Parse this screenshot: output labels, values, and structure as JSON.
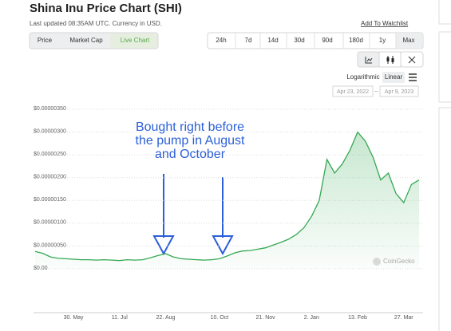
{
  "header": {
    "title": "Shina Inu Price Chart (SHI)",
    "subtitle": "Last updated 08:35AM UTC. Currency in USD.",
    "watchlist": "Add To Watchlist"
  },
  "tabs": [
    "Price",
    "Market Cap",
    "Live Chart"
  ],
  "ranges": [
    "24h",
    "7d",
    "14d",
    "30d",
    "90d",
    "180d",
    "1y",
    "Max"
  ],
  "scale_options": [
    "Logarithmic",
    "Linear"
  ],
  "date_range": [
    "Apr 23, 2022",
    "Apr 9, 2023"
  ],
  "watermark": "CoinGecko",
  "chart_data": {
    "type": "line",
    "color": "#35a853",
    "grid": true,
    "annotation": [
      "Bought right before",
      "the pump in August",
      "and October"
    ],
    "categories": [
      null,
      null,
      null,
      null,
      null,
      "30. May",
      null,
      null,
      null,
      null,
      null,
      "11. Jul",
      null,
      null,
      null,
      null,
      null,
      "22. Aug",
      null,
      null,
      null,
      null,
      null,
      null,
      "10. Oct",
      null,
      null,
      null,
      null,
      null,
      "21. Nov",
      null,
      null,
      null,
      null,
      null,
      "2. Jan",
      null,
      null,
      null,
      null,
      null,
      "13. Feb",
      null,
      null,
      null,
      null,
      null,
      "27. Mar",
      null,
      null
    ],
    "values": [
      3.8e-07,
      3.4e-07,
      2.6e-07,
      2.3e-07,
      2.2e-07,
      2.1e-07,
      2e-07,
      2e-07,
      1.9e-07,
      2e-07,
      1.9e-07,
      1.8e-07,
      2e-07,
      1.9e-07,
      2e-07,
      2.4e-07,
      2.9e-07,
      3.3e-07,
      2.6e-07,
      2.2e-07,
      2.1e-07,
      2e-07,
      1.9e-07,
      2e-07,
      2.2e-07,
      2.8e-07,
      3.5e-07,
      3.9e-07,
      4e-07,
      4.3e-07,
      4.6e-07,
      5.2e-07,
      5.8e-07,
      6.5e-07,
      7.5e-07,
      9e-07,
      1.15e-06,
      1.5e-06,
      2.4e-06,
      2.1e-06,
      2.3e-06,
      2.6e-06,
      3e-06,
      2.8e-06,
      2.45e-06,
      1.95e-06,
      2.1e-06,
      1.65e-06,
      1.45e-06,
      1.85e-06,
      1.95e-06
    ],
    "ylim": [
      0,
      3.5e-06
    ],
    "yticks": [
      {
        "value": 0,
        "label": "$0.00"
      },
      {
        "value": 5e-07,
        "label": "$0.00000050"
      },
      {
        "value": 1e-06,
        "label": "$0.00000100"
      },
      {
        "value": 1.5e-06,
        "label": "$0.00000150"
      },
      {
        "value": 2e-06,
        "label": "$0.00000200"
      },
      {
        "value": 2.5e-06,
        "label": "$0.00000250"
      },
      {
        "value": 3e-06,
        "label": "$0.00000300"
      },
      {
        "value": 3.5e-06,
        "label": "$0.00000350"
      }
    ]
  }
}
